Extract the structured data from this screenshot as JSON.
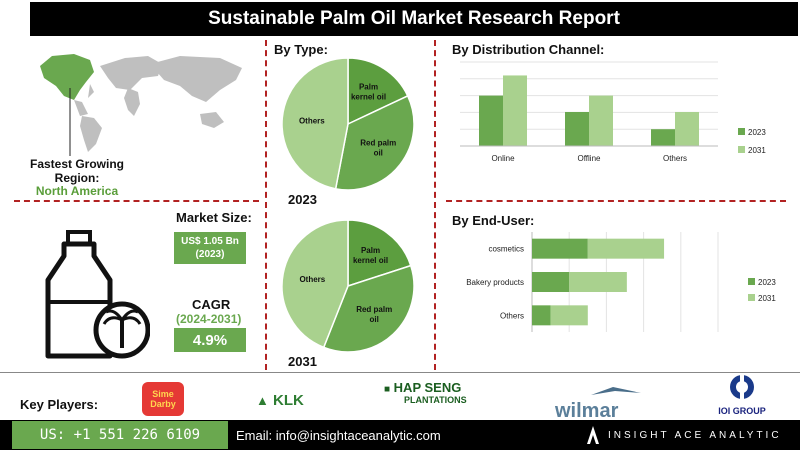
{
  "title": "Sustainable Palm Oil Market Research Report",
  "region": {
    "label": "Fastest Growing Region:",
    "value": "North America"
  },
  "market_size": {
    "title": "Market Size:",
    "value": "US$ 1.05 Bn",
    "year": "(2023)"
  },
  "cagr": {
    "title": "CAGR",
    "period": "(2024-2031)",
    "value": "4.9%"
  },
  "by_type": {
    "header": "By Type:",
    "year_2023": "2023",
    "year_2031": "2031",
    "pie_2023": [
      {
        "label": "Palm kernel oil",
        "value": 18
      },
      {
        "label": "Red palm oil",
        "value": 35
      },
      {
        "label": "Others",
        "value": 47
      }
    ],
    "pie_2031": [
      {
        "label": "Palm kernel oil",
        "value": 20
      },
      {
        "label": "Red palm oil",
        "value": 36
      },
      {
        "label": "Others",
        "value": 44
      }
    ]
  },
  "chart_data": [
    {
      "type": "bar",
      "title": "By Distribution Channel:",
      "categories": [
        "Online",
        "Offline",
        "Others"
      ],
      "series": [
        {
          "name": "2023",
          "values": [
            6,
            4.05,
            2
          ],
          "color": "#6aa84f"
        },
        {
          "name": "2031",
          "values": [
            8.4,
            6,
            4.05
          ],
          "color": "#a9d18e"
        }
      ],
      "ylim": [
        0,
        10
      ],
      "legend": "right"
    },
    {
      "type": "bar",
      "orientation": "horizontal-stacked",
      "title": "By End-User:",
      "categories": [
        "cosmetics",
        "Bakery products",
        "Others"
      ],
      "series": [
        {
          "name": "2023",
          "values": [
            3,
            2,
            1
          ],
          "color": "#6aa84f"
        },
        {
          "name": "2031",
          "values": [
            4.1,
            3.1,
            2
          ],
          "color": "#a9d18e"
        }
      ],
      "xlim": [
        0,
        10
      ],
      "legend": "right"
    }
  ],
  "key_players": {
    "label": "Key Players:",
    "logos": [
      "Sime Darby",
      "KLK",
      "HAP SENG",
      "PLANTATIONS",
      "wilmar",
      "IOI GROUP"
    ]
  },
  "footer": {
    "phone": "US: +1 551 226 6109",
    "email": "Email: info@insightaceanalytic.com",
    "brand": "INSIGHT ACE ANALYTIC"
  },
  "colors": {
    "accent": "#6aa84f",
    "light": "#a9d18e",
    "divider": "#b22222"
  }
}
